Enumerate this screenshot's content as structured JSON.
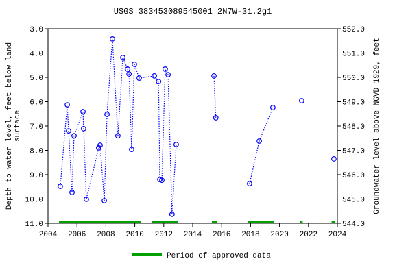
{
  "chart_data": {
    "type": "line",
    "title": "USGS 383453089545001 2N7W-31.2g1",
    "ylabel_lines": [
      "Depth to water level, feet below land",
      "surface"
    ],
    "y2label": "Groundwater level above NGVD 1929, feet",
    "xlim": [
      2004,
      2024
    ],
    "xticks": [
      2004,
      2006,
      2008,
      2010,
      2012,
      2014,
      2016,
      2018,
      2020,
      2022,
      2024
    ],
    "ylim": [
      11,
      3
    ],
    "yticks": [
      {
        "value": 3,
        "label": "3.0"
      },
      {
        "value": 4,
        "label": "4.0"
      },
      {
        "value": 5,
        "label": "5.0"
      },
      {
        "value": 6,
        "label": "6.0"
      },
      {
        "value": 7,
        "label": "7.0"
      },
      {
        "value": 8,
        "label": "8.0"
      },
      {
        "value": 9,
        "label": "9.0"
      },
      {
        "value": 10,
        "label": "10.0"
      },
      {
        "value": 11,
        "label": "11.0"
      }
    ],
    "y2lim": [
      544,
      552
    ],
    "y2ticks": [
      {
        "value": 544,
        "label": "544.0"
      },
      {
        "value": 545,
        "label": "545.0"
      },
      {
        "value": 546,
        "label": "546.0"
      },
      {
        "value": 547,
        "label": "547.0"
      },
      {
        "value": 548,
        "label": "548.0"
      },
      {
        "value": 549,
        "label": "549.0"
      },
      {
        "value": 550,
        "label": "550.0"
      },
      {
        "value": 551,
        "label": "551.0"
      },
      {
        "value": 552,
        "label": "552.0"
      }
    ],
    "series": [
      {
        "color": "#0000ff",
        "x": [
          2004.85,
          2005.33,
          2005.42,
          2005.66,
          2005.8,
          2006.42,
          2006.46,
          2006.65,
          2007.5,
          2007.6,
          2007.89,
          2008.08,
          2008.45,
          2008.83,
          2009.17,
          2009.5,
          2009.6,
          2009.78,
          2009.97,
          2010.3,
          2011.35,
          2011.64,
          2011.73,
          2011.87,
          2012.1,
          2012.3,
          2012.57,
          2012.86,
          null,
          2015.47,
          2015.6,
          null,
          2017.93,
          2018.6,
          2019.54,
          null,
          2021.53,
          null,
          2023.76
        ],
        "values": [
          9.48,
          6.13,
          7.2,
          9.73,
          7.4,
          6.41,
          7.11,
          10.01,
          7.9,
          7.79,
          10.07,
          6.52,
          3.42,
          7.4,
          4.18,
          4.66,
          4.86,
          7.96,
          4.46,
          5.03,
          4.94,
          5.17,
          9.2,
          9.23,
          4.66,
          4.89,
          10.63,
          7.76,
          null,
          4.94,
          6.66,
          null,
          9.37,
          7.62,
          6.24,
          null,
          5.96,
          null,
          8.35
        ]
      }
    ],
    "approved_periods": [
      [
        2004.76,
        2010.4
      ],
      [
        2011.2,
        2012.96
      ],
      [
        2015.33,
        2015.66
      ],
      [
        2017.8,
        2019.64
      ],
      [
        2021.4,
        2021.6
      ],
      [
        2023.6,
        2023.86
      ]
    ],
    "approved_color": "#00a000",
    "approved_label": "Period of approved data"
  }
}
